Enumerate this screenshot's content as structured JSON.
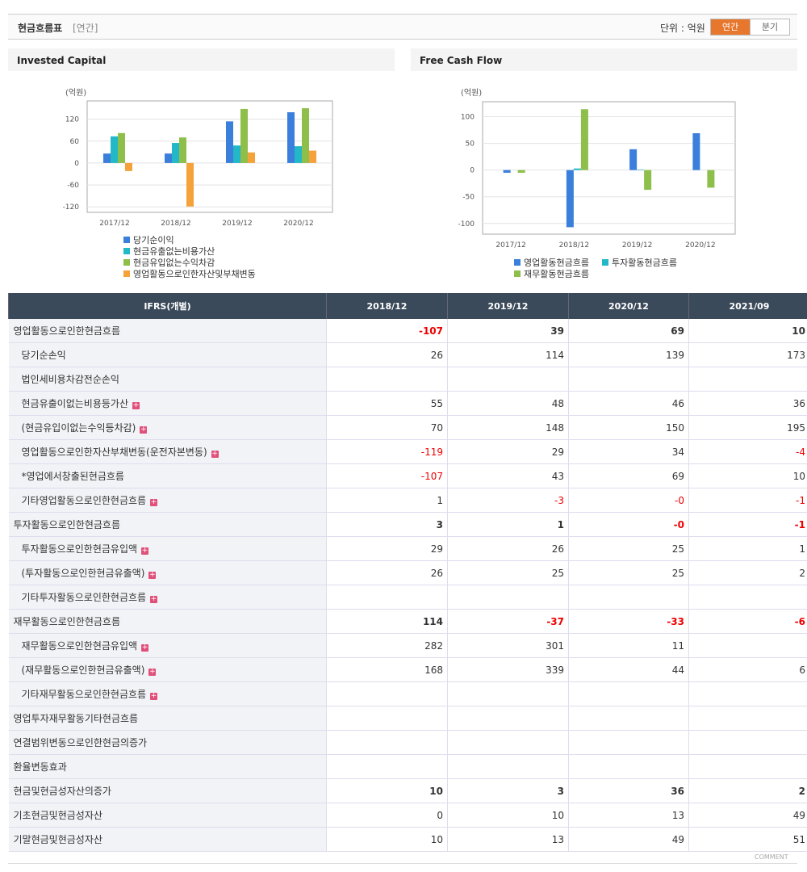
{
  "header": {
    "title": "현금흐름표",
    "period": "[연간]",
    "unit": "단위 : 억원",
    "buttons": [
      "연간",
      "분기"
    ]
  },
  "chart_data": [
    {
      "type": "bar",
      "title": "Invested Capital",
      "unit": "(억원)",
      "categories": [
        "2017/12",
        "2018/12",
        "2019/12",
        "2020/12"
      ],
      "series": [
        {
          "name": "당기순이익",
          "color": "#3a7fdc",
          "values": [
            26,
            26,
            114,
            139
          ]
        },
        {
          "name": "현금유출없는비용가산",
          "color": "#22b8c8",
          "values": [
            73,
            55,
            48,
            46
          ]
        },
        {
          "name": "현금유입없는수익차감",
          "color": "#8dbf4a",
          "values": [
            82,
            70,
            148,
            150
          ]
        },
        {
          "name": "영업활동으로인한자산및부채변동",
          "color": "#f5a23a",
          "values": [
            -22,
            -119,
            29,
            34
          ]
        }
      ],
      "ylim": [
        -135,
        170
      ],
      "yticks": [
        120,
        60,
        0,
        -60,
        -120
      ],
      "grid": true
    },
    {
      "type": "bar",
      "title": "Free Cash Flow",
      "unit": "(억원)",
      "categories": [
        "2017/12",
        "2018/12",
        "2019/12",
        "2020/12"
      ],
      "series": [
        {
          "name": "영업활동현금흐름",
          "color": "#3a7fdc",
          "values": [
            -5,
            -107,
            39,
            69
          ]
        },
        {
          "name": "투자활동현금흐름",
          "color": "#22b8c8",
          "values": [
            0,
            3,
            1,
            0
          ]
        },
        {
          "name": "재무활동현금흐름",
          "color": "#8dbf4a",
          "values": [
            -5,
            114,
            -37,
            -33
          ]
        }
      ],
      "ylim": [
        -120,
        128
      ],
      "yticks": [
        100,
        50,
        0,
        -50,
        -100
      ],
      "grid": true
    }
  ],
  "table": {
    "header": [
      "IFRS(개별)",
      "2018/12",
      "2019/12",
      "2020/12",
      "2021/09"
    ],
    "rows": [
      {
        "label": "영업활동으로인한현금흐름",
        "bold": true,
        "cells": [
          "-107",
          "39",
          "69",
          "10"
        ]
      },
      {
        "label": "당기순손익",
        "indent": true,
        "cells": [
          "26",
          "114",
          "139",
          "173"
        ]
      },
      {
        "label": "법인세비용차감전순손익",
        "indent": true,
        "cells": [
          null,
          null,
          null,
          null
        ]
      },
      {
        "label": "현금유출이없는비용등가산",
        "indent": true,
        "expand": true,
        "cells": [
          "55",
          "48",
          "46",
          "36"
        ]
      },
      {
        "label": "(현금유입이없는수익등차감)",
        "indent": true,
        "expand": true,
        "cells": [
          "70",
          "148",
          "150",
          "195"
        ]
      },
      {
        "label": "영업활동으로인한자산부채변동(운전자본변동)",
        "indent": true,
        "expand": true,
        "cells": [
          "-119",
          "29",
          "34",
          "-4"
        ]
      },
      {
        "label": "*영업에서창출된현금흐름",
        "indent": true,
        "cells": [
          "-107",
          "43",
          "69",
          "10"
        ]
      },
      {
        "label": "기타영업활동으로인한현금흐름",
        "indent": true,
        "expand": true,
        "cells": [
          "1",
          "-3",
          "-0",
          "-1"
        ]
      },
      {
        "label": "투자활동으로인한현금흐름",
        "bold": true,
        "cells": [
          "3",
          "1",
          "-0",
          "-1"
        ]
      },
      {
        "label": "투자활동으로인한현금유입액",
        "indent": true,
        "expand": true,
        "cells": [
          "29",
          "26",
          "25",
          "1"
        ]
      },
      {
        "label": "(투자활동으로인한현금유출액)",
        "indent": true,
        "expand": true,
        "cells": [
          "26",
          "25",
          "25",
          "2"
        ]
      },
      {
        "label": "기타투자활동으로인한현금흐름",
        "indent": true,
        "expand": true,
        "cells": [
          null,
          null,
          null,
          null
        ]
      },
      {
        "label": "재무활동으로인한현금흐름",
        "bold": true,
        "cells": [
          "114",
          "-37",
          "-33",
          "-6"
        ]
      },
      {
        "label": "재무활동으로인한현금유입액",
        "indent": true,
        "expand": true,
        "cells": [
          "282",
          "301",
          "11",
          null
        ]
      },
      {
        "label": "(재무활동으로인한현금유출액)",
        "indent": true,
        "expand": true,
        "cells": [
          "168",
          "339",
          "44",
          "6"
        ]
      },
      {
        "label": "기타재무활동으로인한현금흐름",
        "indent": true,
        "expand": true,
        "cells": [
          null,
          null,
          null,
          null
        ]
      },
      {
        "label": "영업투자재무활동기타현금흐름",
        "cells": [
          null,
          null,
          null,
          null
        ]
      },
      {
        "label": "연결범위변동으로인한현금의증가",
        "cells": [
          null,
          null,
          null,
          null
        ]
      },
      {
        "label": "환율변동효과",
        "cells": [
          null,
          null,
          null,
          null
        ]
      },
      {
        "label": "현금및현금성자산의증가",
        "bold": true,
        "cells": [
          "10",
          "3",
          "36",
          "2"
        ]
      },
      {
        "label": "기초현금및현금성자산",
        "cells": [
          "0",
          "10",
          "13",
          "49"
        ]
      },
      {
        "label": "기말현금및현금성자산",
        "cells": [
          "10",
          "13",
          "49",
          "51"
        ]
      }
    ]
  },
  "footer": "COMMENT"
}
